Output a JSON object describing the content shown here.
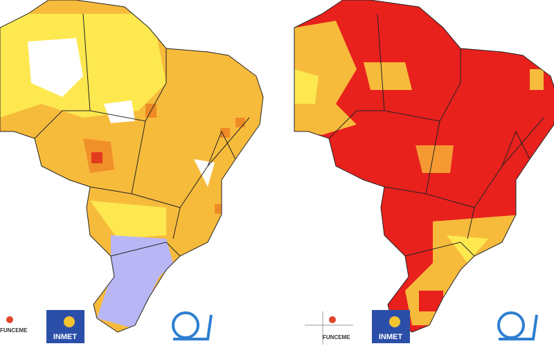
{
  "maps": [
    {
      "logos": [
        {
          "label": "FUNCEME"
        },
        {
          "label": "INMET"
        }
      ]
    },
    {
      "logos": [
        {
          "label": "FUNCEME"
        },
        {
          "label": "INMET"
        }
      ]
    }
  ]
}
